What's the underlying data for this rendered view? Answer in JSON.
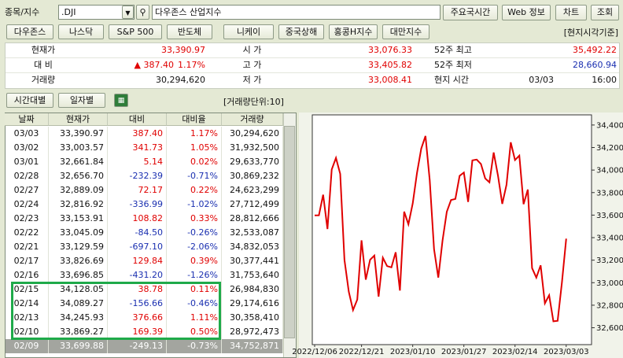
{
  "toolbar": {
    "label": "종목/지수",
    "symbol": ".DJI",
    "name": "다우존스 산업지수",
    "buttons": [
      "주요국시간",
      "Web 정보",
      "차트",
      "조회"
    ]
  },
  "index_tabs": [
    "다우존스",
    "나스닥",
    "S&P 500",
    "반도체",
    "니케이",
    "중국상해",
    "홍콩H지수",
    "대만지수"
  ],
  "time_basis": "[현지시각기준]",
  "quote": {
    "left": [
      {
        "label": "현재가",
        "value": "33,390.97"
      },
      {
        "label": "대 비",
        "value": "▲ 387.40",
        "rate": "1.17%"
      },
      {
        "label": "거래량",
        "value": "30,294,620"
      }
    ],
    "mid": [
      {
        "label": "시 가",
        "value": "33,076.33"
      },
      {
        "label": "고 가",
        "value": "33,405.82"
      },
      {
        "label": "저 가",
        "value": "33,008.41"
      }
    ],
    "right": [
      {
        "label": "52주 최고",
        "value": "35,492.22"
      },
      {
        "label": "52주 최저",
        "value": "28,660.94"
      },
      {
        "label": "현지 시간",
        "value": "03/03",
        "time": "16:00"
      }
    ]
  },
  "view_tabs": [
    "시간대별",
    "일자별"
  ],
  "volume_unit": "[거래량단위:10]",
  "table": {
    "headers": [
      "날짜",
      "현재가",
      "대비",
      "대비율",
      "거래량"
    ],
    "rows": [
      [
        "03/03",
        "33,390.97",
        "387.40",
        "1.17%",
        "30,294,620"
      ],
      [
        "03/02",
        "33,003.57",
        "341.73",
        "1.05%",
        "31,932,500"
      ],
      [
        "03/01",
        "32,661.84",
        "5.14",
        "0.02%",
        "29,633,770"
      ],
      [
        "02/28",
        "32,656.70",
        "-232.39",
        "-0.71%",
        "30,869,232"
      ],
      [
        "02/27",
        "32,889.09",
        "72.17",
        "0.22%",
        "24,623,299"
      ],
      [
        "02/24",
        "32,816.92",
        "-336.99",
        "-1.02%",
        "27,712,499"
      ],
      [
        "02/23",
        "33,153.91",
        "108.82",
        "0.33%",
        "28,812,666"
      ],
      [
        "02/22",
        "33,045.09",
        "-84.50",
        "-0.26%",
        "32,533,087"
      ],
      [
        "02/21",
        "33,129.59",
        "-697.10",
        "-2.06%",
        "34,832,053"
      ],
      [
        "02/17",
        "33,826.69",
        "129.84",
        "0.39%",
        "30,377,441"
      ],
      [
        "02/16",
        "33,696.85",
        "-431.20",
        "-1.26%",
        "31,753,640"
      ],
      [
        "02/15",
        "34,128.05",
        "38.78",
        "0.11%",
        "26,984,830"
      ],
      [
        "02/14",
        "34,089.27",
        "-156.66",
        "-0.46%",
        "29,174,616"
      ],
      [
        "02/13",
        "34,245.93",
        "376.66",
        "1.11%",
        "30,358,410"
      ],
      [
        "02/10",
        "33,869.27",
        "169.39",
        "0.50%",
        "28,972,473"
      ],
      [
        "02/09",
        "33,699.88",
        "-249.13",
        "-0.73%",
        "34,752,871"
      ]
    ]
  },
  "chart_data": {
    "type": "line",
    "categories": [
      "2022/12/06",
      null,
      null,
      null,
      null,
      null,
      null,
      null,
      null,
      null,
      null,
      "2022/12/21",
      null,
      null,
      null,
      null,
      null,
      null,
      null,
      null,
      null,
      null,
      null,
      "2023/01/10",
      null,
      null,
      null,
      null,
      null,
      null,
      null,
      null,
      null,
      null,
      null,
      "2023/01/27",
      null,
      null,
      null,
      null,
      null,
      null,
      null,
      null,
      null,
      null,
      null,
      "2023/02/14",
      null,
      null,
      null,
      null,
      null,
      null,
      null,
      null,
      null,
      null,
      null,
      "2023/03/03"
    ],
    "values": [
      33597,
      33598,
      33781,
      33476,
      34005,
      34108,
      33966,
      33202,
      32920,
      32757,
      32850,
      33376,
      33027,
      33204,
      33241,
      32876,
      33221,
      33147,
      33136,
      33270,
      32930,
      33631,
      33518,
      33704,
      33974,
      34190,
      34303,
      33910,
      33297,
      33045,
      33375,
      33630,
      33734,
      33744,
      33949,
      33978,
      33717,
      34086,
      34093,
      34054,
      33926,
      33891,
      34156,
      33949,
      33700,
      33869,
      34246,
      34089,
      34128,
      33697,
      33827,
      33130,
      33045,
      33154,
      32817,
      32889,
      32657,
      32662,
      33004,
      33391
    ],
    "color": "#e00000",
    "ylim": [
      32450,
      34490
    ],
    "yticks": [
      {
        "value": 32600,
        "label": "32,600"
      },
      {
        "value": 32800,
        "label": "32,800"
      },
      {
        "value": 33000,
        "label": "33,000"
      },
      {
        "value": 33200,
        "label": "33,200"
      },
      {
        "value": 33400,
        "label": "33,400"
      },
      {
        "value": 33600,
        "label": "33,600"
      },
      {
        "value": 33800,
        "label": "33,800"
      },
      {
        "value": 34000,
        "label": "34,000"
      },
      {
        "value": 34200,
        "label": "34,200"
      },
      {
        "value": 34400,
        "label": "34,400"
      }
    ]
  }
}
